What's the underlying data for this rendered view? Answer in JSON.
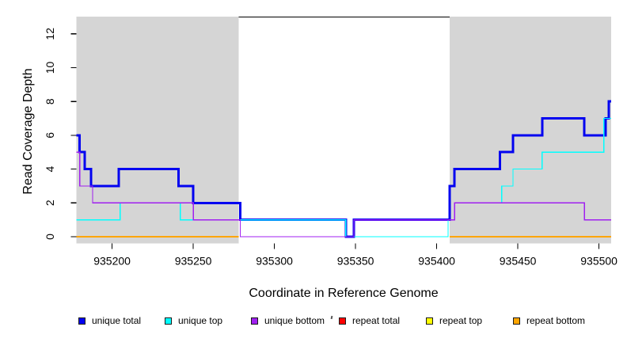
{
  "chart_data": {
    "type": "line",
    "subtype": "step-coverage",
    "title": "",
    "xlabel": "Coordinate in Reference Genome",
    "ylabel": "Read Coverage Depth",
    "xlim": [
      935178,
      935507.5
    ],
    "ylim": [
      -0.4,
      13.02
    ],
    "x_ticks": [
      935200,
      935250,
      935300,
      935350,
      935400,
      935450,
      935500
    ],
    "y_ticks": [
      0,
      2,
      4,
      6,
      8,
      10,
      12
    ],
    "grid": false,
    "panel_shade_color": "#d5d5d5",
    "shaded_regions": [
      [
        935178,
        935278
      ],
      [
        935408,
        935507.5
      ]
    ],
    "repeat_marker": {
      "x1": 935278,
      "x2": 935408,
      "y": 13,
      "color": "#000000"
    },
    "series": [
      {
        "name": "unique total",
        "color": "#0202f0",
        "line_width": 3,
        "steps": [
          [
            935178,
            6
          ],
          [
            935180,
            5
          ],
          [
            935183,
            4
          ],
          [
            935187,
            3
          ],
          [
            935204,
            4
          ],
          [
            935241,
            3
          ],
          [
            935250,
            2
          ],
          [
            935279,
            1
          ],
          [
            935344,
            0
          ],
          [
            935349,
            1
          ],
          [
            935408,
            3
          ],
          [
            935411,
            4
          ],
          [
            935439,
            5
          ],
          [
            935447,
            6
          ],
          [
            935465,
            7
          ],
          [
            935491,
            6
          ],
          [
            935504,
            7
          ],
          [
            935506,
            8
          ]
        ]
      },
      {
        "name": "unique top",
        "color": "#00ffff",
        "line_width": 1.3,
        "steps": [
          [
            935178,
            1
          ],
          [
            935205,
            2
          ],
          [
            935242,
            1
          ],
          [
            935344,
            0
          ],
          [
            935407,
            1
          ],
          [
            935411,
            2
          ],
          [
            935440,
            3
          ],
          [
            935447,
            4
          ],
          [
            935465,
            5
          ],
          [
            935503,
            7
          ]
        ]
      },
      {
        "name": "unique bottom",
        "color": "#a020f0",
        "line_width": 1.3,
        "steps": [
          [
            935178,
            5
          ],
          [
            935180,
            3
          ],
          [
            935188,
            2
          ],
          [
            935250,
            1
          ],
          [
            935279,
            0
          ],
          [
            935349,
            1
          ],
          [
            935411,
            2
          ],
          [
            935491,
            1
          ]
        ]
      },
      {
        "name": "repeat total",
        "color": "#ff0000",
        "line_width": 1.3,
        "steps": []
      },
      {
        "name": "repeat top",
        "color": "#ffff00",
        "line_width": 1.3,
        "steps": []
      },
      {
        "name": "repeat bottom",
        "color": "#ffa500",
        "line_width": 2,
        "runs": [
          {
            "from": 935178,
            "to": 935278,
            "value": 0
          },
          {
            "from": 935408,
            "to": 935507.5,
            "value": 0
          }
        ]
      }
    ],
    "legend": {
      "position": "bottom",
      "items": [
        {
          "label": "unique total",
          "color": "#0202f0"
        },
        {
          "label": "unique top",
          "color": "#00ffff"
        },
        {
          "label": "unique bottom",
          "color": "#a020f0"
        },
        {
          "label": "repeat total",
          "color": "#ff0000"
        },
        {
          "label": "repeat top",
          "color": "#ffff00"
        },
        {
          "label": "repeat bottom",
          "color": "#ffa500"
        }
      ]
    }
  }
}
